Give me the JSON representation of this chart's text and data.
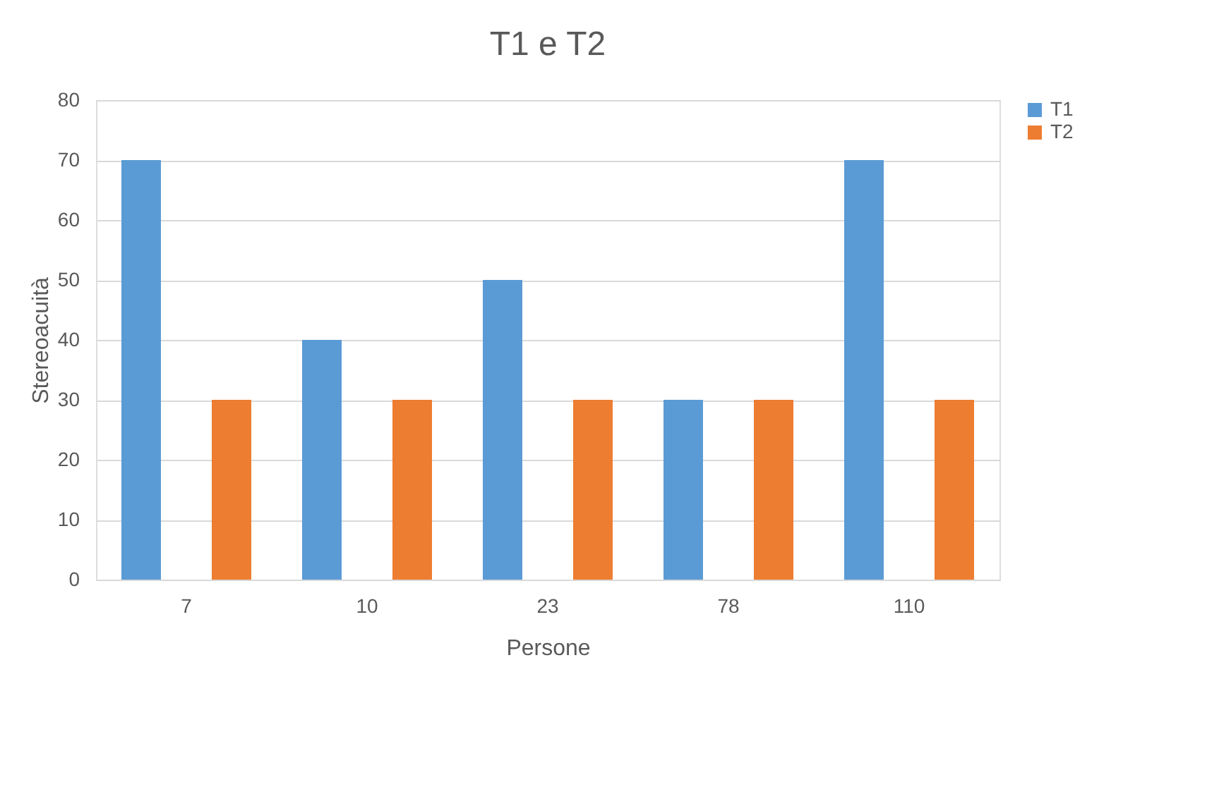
{
  "chart_data": {
    "type": "bar",
    "title": "T1 e T2",
    "xlabel": "Persone",
    "ylabel": "Stereoacuità",
    "categories": [
      "7",
      "10",
      "23",
      "78",
      "110"
    ],
    "series": [
      {
        "name": "T1",
        "color": "#5b9bd5",
        "values": [
          70,
          40,
          50,
          30,
          70
        ]
      },
      {
        "name": "T2",
        "color": "#ed7d31",
        "values": [
          30,
          30,
          30,
          30,
          30
        ]
      }
    ],
    "ylim": [
      0,
      80
    ],
    "yticks": [
      0,
      10,
      20,
      30,
      40,
      50,
      60,
      70,
      80
    ],
    "grid": "y",
    "legend": "right"
  }
}
